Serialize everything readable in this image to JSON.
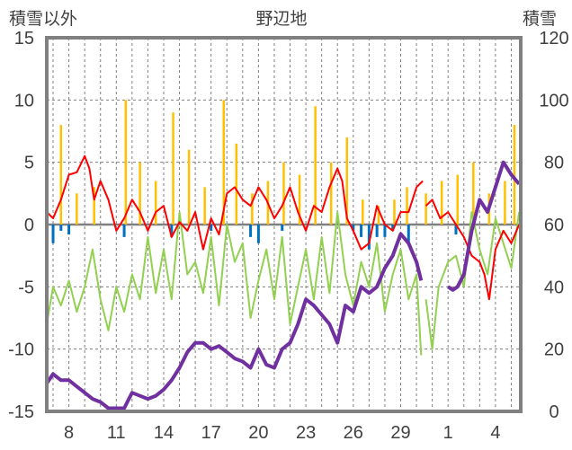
{
  "chart_data": {
    "type": "line",
    "title": "野辺地",
    "ylabel_left": "積雪以外",
    "ylabel_right": "積雪",
    "ylim_left": [
      -15,
      15
    ],
    "ylim_right": [
      0,
      120
    ],
    "y_ticks_left": [
      "15",
      "10",
      "5",
      "0",
      "-5",
      "-10",
      "-15"
    ],
    "y_ticks_right": [
      "120",
      "100",
      "80",
      "60",
      "40",
      "20",
      "0"
    ],
    "x_ticks": [
      "8",
      "11",
      "14",
      "17",
      "20",
      "23",
      "26",
      "29",
      "1",
      "4"
    ],
    "x_tick_positions": [
      8,
      11,
      14,
      17,
      20,
      23,
      26,
      29,
      32,
      35
    ],
    "xlim": [
      6.6,
      36.6
    ],
    "grid": "vertical dashed daily lines, horizontal dashed lines every 5 units",
    "colors": {
      "temperature_max": "#FF0000",
      "temperature_min": "#92D050",
      "sunshine": "#FFC000",
      "precipitation": "#0070C0",
      "snow_depth": "#7030A0",
      "frame": "#808080",
      "zero_line": "#808080"
    },
    "series": [
      {
        "color_key": "temperature_max",
        "axis": "left",
        "x": [
          6.6,
          7.0,
          7.5,
          8.0,
          8.5,
          9.0,
          9.3,
          9.6,
          10.0,
          10.5,
          11.0,
          11.5,
          12.0,
          12.5,
          13.0,
          13.5,
          14.0,
          14.5,
          15.0,
          15.5,
          16.0,
          16.5,
          17.0,
          17.5,
          18.0,
          18.5,
          19.0,
          19.5,
          20.0,
          20.5,
          21.0,
          21.5,
          22.0,
          22.5,
          23.0,
          23.5,
          24.0,
          24.5,
          25.0,
          25.3,
          25.6,
          26.0,
          26.5,
          27.0,
          27.5,
          28.0,
          28.5,
          29.0,
          29.5,
          30.0,
          30.4
        ],
        "y": [
          1.0,
          0.5,
          2.0,
          4.0,
          4.2,
          5.5,
          4.5,
          2.0,
          3.5,
          2.0,
          -0.5,
          0.5,
          2.0,
          1.0,
          -0.5,
          1.0,
          1.5,
          -1.0,
          0.2,
          -0.5,
          1.0,
          -2.0,
          0.5,
          -0.8,
          2.5,
          3.0,
          2.0,
          1.5,
          3.0,
          2.0,
          0.5,
          1.5,
          3.0,
          1.0,
          -0.5,
          1.5,
          1.0,
          3.0,
          4.5,
          3.5,
          0.5,
          -0.5,
          -2.0,
          -1.5,
          1.5,
          0.0,
          -0.5,
          1.0,
          1.0,
          3.0,
          3.5
        ]
      },
      {
        "color_key": "temperature_max",
        "axis": "left",
        "x": [
          30.6,
          31.0,
          31.5,
          32.0,
          32.5,
          33.0,
          33.5,
          34.0,
          34.3,
          34.6,
          35.0,
          35.5,
          36.0,
          36.5
        ],
        "y": [
          1.5,
          2.0,
          0.5,
          1.0,
          0.0,
          -1.0,
          -2.5,
          -3.0,
          -4.0,
          -6.0,
          -2.0,
          -0.5,
          -1.5,
          0.0
        ]
      },
      {
        "color_key": "temperature_min",
        "axis": "left",
        "x": [
          6.6,
          7.0,
          7.5,
          8.0,
          8.5,
          9.0,
          9.5,
          10.0,
          10.5,
          11.0,
          11.5,
          12.0,
          12.5,
          13.0,
          13.5,
          14.0,
          14.5,
          15.0,
          15.5,
          16.0,
          16.5,
          17.0,
          17.5,
          18.0,
          18.5,
          19.0,
          19.5,
          20.0,
          20.5,
          21.0,
          21.5,
          22.0,
          22.5,
          23.0,
          23.5,
          24.0,
          24.5,
          25.0,
          25.5,
          26.0,
          26.5,
          27.0,
          27.5,
          28.0,
          28.5,
          29.0,
          29.5,
          30.0,
          30.3
        ],
        "y": [
          -8.0,
          -5.0,
          -6.5,
          -4.5,
          -7.0,
          -5.0,
          -2.0,
          -6.0,
          -8.5,
          -5.0,
          -7.0,
          -4.0,
          -6.0,
          -1.0,
          -5.5,
          -2.0,
          -6.0,
          1.0,
          -4.0,
          -3.0,
          -5.5,
          -1.0,
          -6.5,
          0.0,
          -3.0,
          -1.5,
          -7.5,
          -4.5,
          -2.0,
          -6.0,
          -1.0,
          -8.0,
          -5.0,
          -2.0,
          -6.0,
          -1.0,
          -5.5,
          1.0,
          -4.0,
          -6.5,
          -3.0,
          -5.0,
          -1.5,
          -7.0,
          -4.0,
          -2.0,
          -6.0,
          -4.0,
          -10.5
        ]
      },
      {
        "color_key": "temperature_min",
        "axis": "left",
        "x": [
          30.6,
          31.0,
          31.4,
          32.0,
          32.5,
          33.0,
          33.5,
          34.0,
          34.5,
          35.0,
          35.5,
          36.0,
          36.5
        ],
        "y": [
          -6.0,
          -10.0,
          -5.0,
          -3.0,
          -2.5,
          -5.0,
          1.0,
          -2.0,
          -4.0,
          0.5,
          -1.5,
          -3.5,
          1.0
        ]
      },
      {
        "color_key": "sunshine",
        "axis": "left",
        "x": [
          7.5,
          8.5,
          9.6,
          11.6,
          12.5,
          13.5,
          14.6,
          15.6,
          16.6,
          17.8,
          18.6,
          19.6,
          20.6,
          21.6,
          22.6,
          23.6,
          24.6,
          25.6,
          26.6,
          27.6,
          28.6,
          29.4,
          30.6,
          31.6,
          32.6,
          33.6,
          34.6,
          35.6,
          36.2
        ],
        "y": [
          8.0,
          2.5,
          3.0,
          10.0,
          5.0,
          3.5,
          9.0,
          6.0,
          3.0,
          10.0,
          6.5,
          2.5,
          3.5,
          5.0,
          4.0,
          9.5,
          5.0,
          7.0,
          2.0,
          1.5,
          2.0,
          3.0,
          2.5,
          3.5,
          4.0,
          5.0,
          2.5,
          3.5,
          8.0
        ]
      },
      {
        "color_key": "precipitation",
        "axis": "left",
        "x": [
          7.0,
          7.5,
          8.0,
          11.5,
          14.5,
          17.0,
          19.5,
          20.0,
          21.5,
          26.0,
          26.5,
          27.0,
          27.5,
          28.0,
          28.5,
          29.5,
          32.5
        ],
        "y": [
          -1.5,
          -0.5,
          -0.8,
          -1.0,
          -1.0,
          -0.5,
          -1.0,
          -1.5,
          -0.5,
          -0.5,
          -1.0,
          -2.0,
          -1.0,
          -1.0,
          -0.5,
          -1.5,
          -0.8
        ]
      },
      {
        "color_key": "snow_depth",
        "axis": "right",
        "x": [
          6.6,
          7.0,
          7.5,
          8.0,
          8.5,
          9.0,
          9.5,
          10.0,
          10.5,
          11.0,
          11.5,
          11.8,
          12.0,
          12.5,
          13.0,
          13.5,
          14.0,
          14.5,
          15.0,
          15.5,
          16.0,
          16.5,
          17.0,
          17.5,
          18.0,
          18.5,
          19.0,
          19.5,
          20.0,
          20.5,
          21.0,
          21.5,
          22.0,
          22.5,
          23.0,
          23.5,
          24.0,
          24.5,
          25.0,
          25.5,
          26.0,
          26.5,
          27.0,
          27.5,
          28.0,
          28.5,
          29.0,
          29.5,
          30.0,
          30.3
        ],
        "y": [
          9,
          12,
          10,
          10,
          8,
          6,
          4,
          3,
          1,
          1,
          1,
          4,
          6,
          5,
          4,
          5,
          7,
          10,
          14,
          19,
          22,
          22,
          20,
          21,
          19,
          17,
          16,
          14,
          20,
          15,
          14,
          20,
          22,
          28,
          36,
          34,
          31,
          28,
          22,
          34,
          32,
          40,
          38,
          40,
          46,
          50,
          57,
          54,
          48,
          42
        ]
      },
      {
        "color_key": "snow_depth",
        "axis": "right",
        "x": [
          32.0,
          32.3,
          32.6,
          33.0,
          33.5,
          34.0,
          34.5,
          35.0,
          35.5,
          36.0,
          36.5
        ],
        "y": [
          40,
          39,
          40,
          44,
          58,
          68,
          64,
          72,
          80,
          76,
          73
        ]
      }
    ]
  }
}
